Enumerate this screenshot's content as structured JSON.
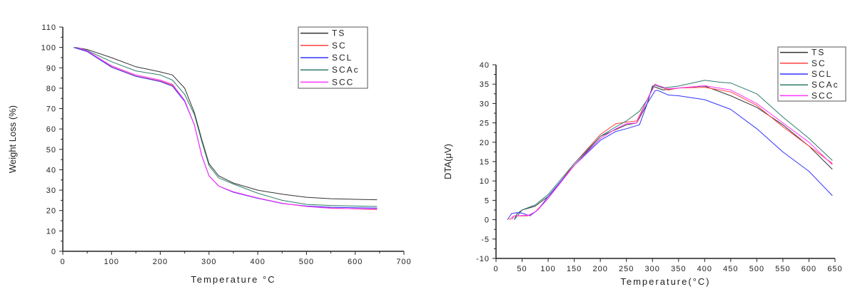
{
  "chart_data": [
    {
      "type": "line",
      "title": "",
      "xlabel": "Temperature °C",
      "ylabel": "Weight Loss (%)",
      "xlim": [
        0,
        700
      ],
      "ylim": [
        0,
        110
      ],
      "xticks": [
        0,
        100,
        200,
        300,
        400,
        500,
        600,
        700
      ],
      "yticks": [
        0,
        10,
        20,
        30,
        40,
        50,
        60,
        70,
        80,
        90,
        100,
        110
      ],
      "grid": false,
      "legend_position": "top-right",
      "series": [
        {
          "name": "TS",
          "color": "#333333",
          "points": [
            [
              25,
              100
            ],
            [
              50,
              99
            ],
            [
              100,
              95
            ],
            [
              150,
              90.5
            ],
            [
              200,
              88
            ],
            [
              225,
              86.5
            ],
            [
              250,
              80
            ],
            [
              270,
              68
            ],
            [
              285,
              55
            ],
            [
              300,
              43
            ],
            [
              320,
              37
            ],
            [
              350,
              33.5
            ],
            [
              400,
              30
            ],
            [
              450,
              28
            ],
            [
              500,
              26.5
            ],
            [
              550,
              25.8
            ],
            [
              600,
              25.5
            ],
            [
              645,
              25.3
            ]
          ]
        },
        {
          "name": "SC",
          "color": "#ff4040",
          "points": [
            [
              25,
              100
            ],
            [
              50,
              98
            ],
            [
              100,
              90.5
            ],
            [
              150,
              86
            ],
            [
              200,
              83.5
            ],
            [
              225,
              81.5
            ],
            [
              250,
              74
            ],
            [
              270,
              62
            ],
            [
              285,
              47
            ],
            [
              300,
              37
            ],
            [
              320,
              32
            ],
            [
              350,
              29
            ],
            [
              400,
              26
            ],
            [
              450,
              23.5
            ],
            [
              500,
              22
            ],
            [
              550,
              21.2
            ],
            [
              600,
              20.8
            ],
            [
              645,
              20.5
            ]
          ]
        },
        {
          "name": "SCL",
          "color": "#3333ff",
          "points": [
            [
              22,
              100
            ],
            [
              50,
              98
            ],
            [
              100,
              90.3
            ],
            [
              150,
              85.8
            ],
            [
              200,
              83.3
            ],
            [
              225,
              81
            ],
            [
              250,
              73.5
            ],
            [
              270,
              62
            ],
            [
              285,
              47
            ],
            [
              300,
              37
            ],
            [
              320,
              32
            ],
            [
              350,
              29
            ],
            [
              400,
              26
            ],
            [
              450,
              23.5
            ],
            [
              500,
              22.2
            ],
            [
              550,
              21.6
            ],
            [
              600,
              21.4
            ],
            [
              645,
              21.2
            ]
          ]
        },
        {
          "name": "SCAc",
          "color": "#2e7d6b",
          "points": [
            [
              25,
              100
            ],
            [
              50,
              98.5
            ],
            [
              100,
              93
            ],
            [
              150,
              88.5
            ],
            [
              200,
              86.5
            ],
            [
              225,
              84
            ],
            [
              250,
              77
            ],
            [
              270,
              67
            ],
            [
              285,
              54
            ],
            [
              300,
              42
            ],
            [
              320,
              36
            ],
            [
              350,
              33
            ],
            [
              400,
              28.5
            ],
            [
              450,
              25
            ],
            [
              500,
              23
            ],
            [
              550,
              22.5
            ],
            [
              600,
              22.2
            ],
            [
              645,
              22
            ]
          ]
        },
        {
          "name": "SCC",
          "color": "#ff33ff",
          "points": [
            [
              30,
              100
            ],
            [
              50,
              98.3
            ],
            [
              100,
              91
            ],
            [
              150,
              86.5
            ],
            [
              200,
              84
            ],
            [
              225,
              82
            ],
            [
              250,
              74
            ],
            [
              270,
              62
            ],
            [
              285,
              47
            ],
            [
              300,
              37
            ],
            [
              320,
              32
            ],
            [
              350,
              29.2
            ],
            [
              400,
              26.2
            ],
            [
              450,
              23.6
            ],
            [
              500,
              22
            ],
            [
              550,
              21.1
            ],
            [
              600,
              20.9
            ],
            [
              645,
              20.8
            ]
          ]
        }
      ]
    },
    {
      "type": "line",
      "title": "",
      "xlabel": "Temperature(°C)",
      "ylabel": "DTA(μV)",
      "xlim": [
        0,
        650
      ],
      "ylim": [
        -10,
        40
      ],
      "xticks": [
        0,
        50,
        100,
        150,
        200,
        250,
        300,
        350,
        400,
        450,
        500,
        550,
        600,
        650
      ],
      "yticks": [
        -10,
        -5,
        0,
        5,
        10,
        15,
        20,
        25,
        30,
        35,
        40
      ],
      "grid": false,
      "legend_position": "top-right",
      "series": [
        {
          "name": "TS",
          "color": "#333333",
          "points": [
            [
              35,
              0
            ],
            [
              40,
              1.5
            ],
            [
              50,
              2.5
            ],
            [
              75,
              3.5
            ],
            [
              100,
              6
            ],
            [
              150,
              14
            ],
            [
              200,
              21.5
            ],
            [
              250,
              24.5
            ],
            [
              270,
              25
            ],
            [
              290,
              30
            ],
            [
              300,
              34.5
            ],
            [
              320,
              33.5
            ],
            [
              350,
              34
            ],
            [
              400,
              34.5
            ],
            [
              450,
              32
            ],
            [
              500,
              29
            ],
            [
              550,
              24.5
            ],
            [
              600,
              19
            ],
            [
              645,
              13
            ]
          ]
        },
        {
          "name": "SC",
          "color": "#ff4040",
          "points": [
            [
              25,
              0
            ],
            [
              35,
              1
            ],
            [
              60,
              1
            ],
            [
              75,
              2
            ],
            [
              100,
              5.5
            ],
            [
              150,
              14.5
            ],
            [
              200,
              22
            ],
            [
              230,
              24.8
            ],
            [
              250,
              25.2
            ],
            [
              270,
              25.5
            ],
            [
              290,
              31
            ],
            [
              305,
              35
            ],
            [
              330,
              33.5
            ],
            [
              350,
              34
            ],
            [
              400,
              34.2
            ],
            [
              450,
              33
            ],
            [
              500,
              29.5
            ],
            [
              550,
              24
            ],
            [
              600,
              19
            ],
            [
              645,
              14.5
            ]
          ]
        },
        {
          "name": "SCL",
          "color": "#3333ff",
          "points": [
            [
              22,
              0
            ],
            [
              30,
              1.6
            ],
            [
              40,
              1.8
            ],
            [
              50,
              1.7
            ],
            [
              65,
              1
            ],
            [
              80,
              2.5
            ],
            [
              100,
              6
            ],
            [
              150,
              14
            ],
            [
              200,
              20.5
            ],
            [
              230,
              22.8
            ],
            [
              250,
              23.5
            ],
            [
              275,
              24.5
            ],
            [
              290,
              30
            ],
            [
              305,
              33.3
            ],
            [
              310,
              33.4
            ],
            [
              330,
              32.2
            ],
            [
              350,
              32
            ],
            [
              400,
              31
            ],
            [
              450,
              28.5
            ],
            [
              500,
              23.5
            ],
            [
              550,
              17.5
            ],
            [
              600,
              12.5
            ],
            [
              645,
              6.2
            ]
          ]
        },
        {
          "name": "SCAc",
          "color": "#2e7d6b",
          "points": [
            [
              35,
              0
            ],
            [
              50,
              2.5
            ],
            [
              75,
              3.8
            ],
            [
              100,
              6.5
            ],
            [
              150,
              14.5
            ],
            [
              200,
              21.5
            ],
            [
              230,
              24
            ],
            [
              250,
              25.5
            ],
            [
              275,
              28
            ],
            [
              290,
              31
            ],
            [
              303,
              34.8
            ],
            [
              320,
              34
            ],
            [
              350,
              34.5
            ],
            [
              400,
              36
            ],
            [
              430,
              35.5
            ],
            [
              450,
              35.3
            ],
            [
              500,
              32.5
            ],
            [
              550,
              26.5
            ],
            [
              600,
              21
            ],
            [
              645,
              15.3
            ]
          ]
        },
        {
          "name": "SCC",
          "color": "#ff33ff",
          "points": [
            [
              30,
              0
            ],
            [
              35,
              1
            ],
            [
              65,
              1.2
            ],
            [
              80,
              2.5
            ],
            [
              100,
              5.5
            ],
            [
              150,
              14
            ],
            [
              200,
              21
            ],
            [
              230,
              23.5
            ],
            [
              250,
              24.8
            ],
            [
              270,
              25
            ],
            [
              290,
              31
            ],
            [
              305,
              34.9
            ],
            [
              330,
              33.8
            ],
            [
              350,
              34
            ],
            [
              400,
              34.6
            ],
            [
              450,
              33.5
            ],
            [
              500,
              30
            ],
            [
              550,
              25
            ],
            [
              600,
              20
            ],
            [
              645,
              14.2
            ]
          ]
        }
      ]
    }
  ]
}
